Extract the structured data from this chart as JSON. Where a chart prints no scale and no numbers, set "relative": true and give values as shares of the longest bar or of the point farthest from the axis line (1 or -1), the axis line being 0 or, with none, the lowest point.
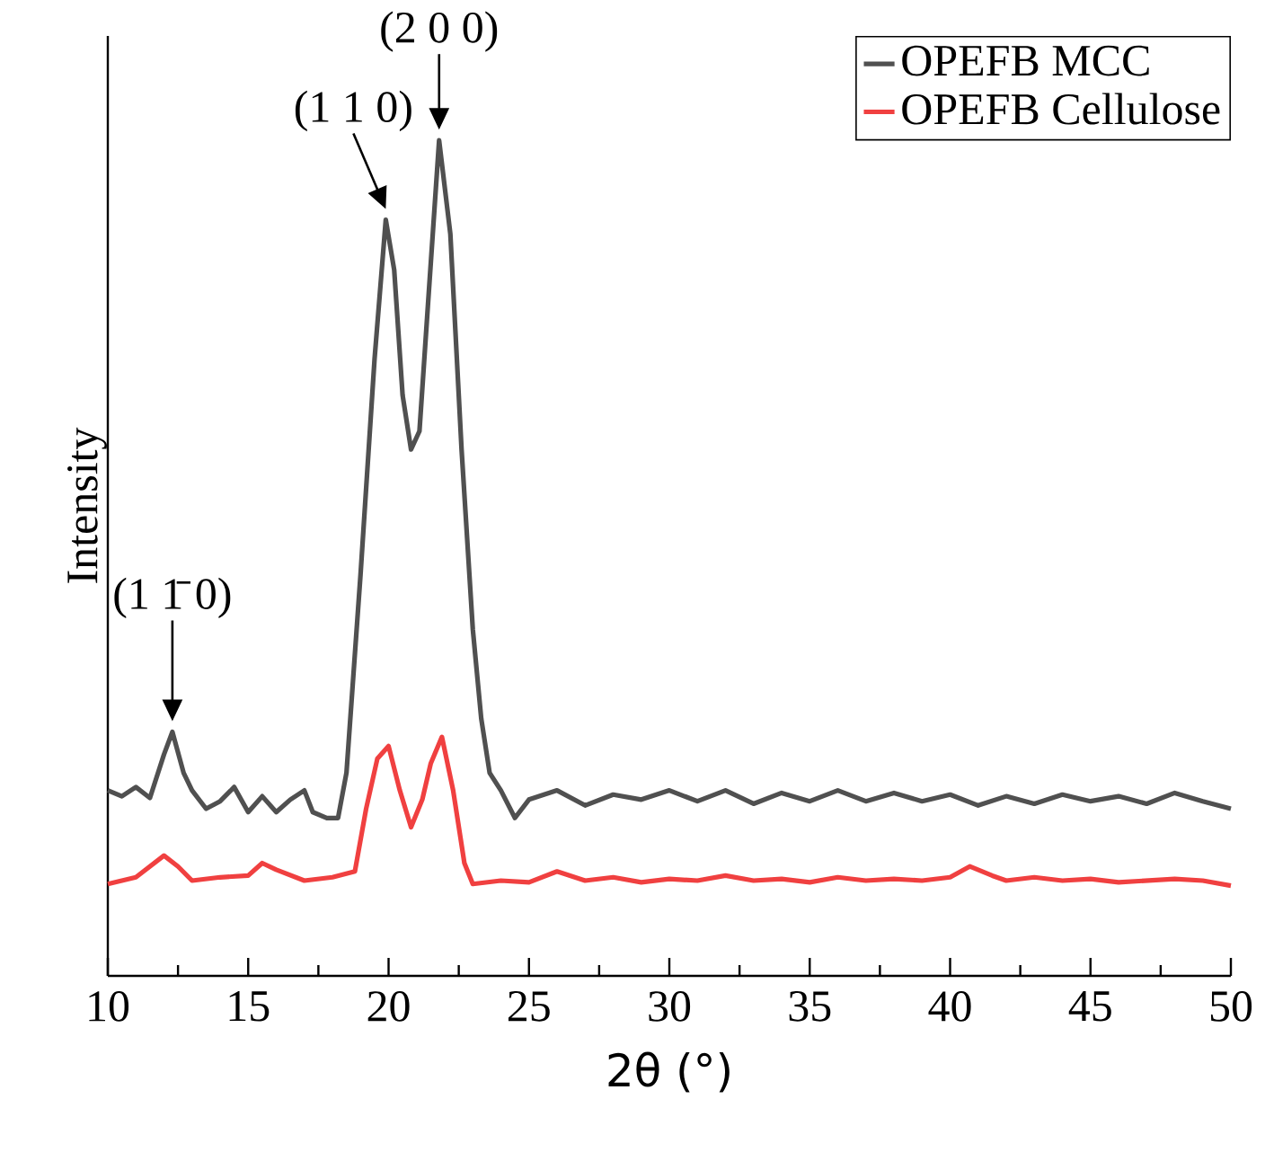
{
  "chart_data": {
    "type": "line",
    "relative": true,
    "xlabel": "2θ (°)",
    "ylabel": "Intensity",
    "xlim": [
      10,
      50
    ],
    "xticks": [
      10,
      15,
      20,
      25,
      30,
      35,
      40,
      45,
      50
    ],
    "legend": "top right",
    "tick_labels": "x",
    "series": [
      {
        "name": "OPEFB MCC",
        "color": "#505050",
        "x": [
          10,
          10.5,
          11,
          11.5,
          12,
          12.3,
          12.7,
          13,
          13.5,
          14,
          14.5,
          15,
          15.5,
          16,
          16.5,
          17,
          17.3,
          17.8,
          18.2,
          18.5,
          19,
          19.5,
          19.9,
          20.2,
          20.5,
          20.8,
          21.1,
          21.4,
          21.8,
          22.2,
          22.6,
          23,
          23.3,
          23.6,
          24,
          24.5,
          25,
          26,
          27,
          28,
          29,
          30,
          31,
          32,
          33,
          34,
          35,
          36,
          37,
          38,
          39,
          40,
          41,
          42,
          43,
          44,
          45,
          46,
          47,
          48,
          49,
          50
        ],
        "values": [
          0.222,
          0.215,
          0.226,
          0.213,
          0.265,
          0.292,
          0.243,
          0.222,
          0.2,
          0.209,
          0.226,
          0.196,
          0.215,
          0.196,
          0.211,
          0.222,
          0.196,
          0.189,
          0.189,
          0.243,
          0.48,
          0.738,
          0.905,
          0.845,
          0.695,
          0.63,
          0.652,
          0.802,
          1,
          0.888,
          0.63,
          0.415,
          0.308,
          0.243,
          0.222,
          0.189,
          0.211,
          0.222,
          0.204,
          0.217,
          0.211,
          0.222,
          0.209,
          0.222,
          0.206,
          0.219,
          0.209,
          0.222,
          0.209,
          0.219,
          0.209,
          0.217,
          0.204,
          0.215,
          0.206,
          0.217,
          0.209,
          0.215,
          0.206,
          0.219,
          0.209,
          0.2
        ]
      },
      {
        "name": "OPEFB Cellulose",
        "color": "#f04040",
        "x": [
          10,
          11,
          12,
          12.5,
          13,
          14,
          15,
          15.5,
          16,
          17,
          18,
          18.8,
          19.2,
          19.6,
          20,
          20.4,
          20.8,
          21.2,
          21.5,
          21.9,
          22.3,
          22.7,
          23,
          24,
          25,
          26,
          27,
          28,
          29,
          30,
          31,
          32,
          33,
          34,
          35,
          36,
          37,
          38,
          39,
          40,
          40.7,
          41.5,
          42,
          43,
          44,
          45,
          46,
          47,
          48,
          49,
          50
        ],
        "values": [
          0.11,
          0.118,
          0.144,
          0.131,
          0.114,
          0.118,
          0.12,
          0.135,
          0.127,
          0.114,
          0.118,
          0.125,
          0.2,
          0.26,
          0.275,
          0.222,
          0.178,
          0.211,
          0.254,
          0.286,
          0.222,
          0.135,
          0.11,
          0.114,
          0.112,
          0.125,
          0.114,
          0.118,
          0.112,
          0.116,
          0.114,
          0.12,
          0.114,
          0.116,
          0.112,
          0.118,
          0.114,
          0.116,
          0.114,
          0.118,
          0.131,
          0.12,
          0.114,
          0.118,
          0.114,
          0.116,
          0.112,
          0.114,
          0.116,
          0.114,
          0.108
        ]
      }
    ],
    "annotations": [
      {
        "text": "(1 1̄ 0)",
        "x": 12.3,
        "y": 0.292
      },
      {
        "text": "(1 1 0)",
        "x": 19.9,
        "y": 0.905
      },
      {
        "text": "(2 0 0)",
        "x": 21.8,
        "y": 1
      }
    ]
  }
}
